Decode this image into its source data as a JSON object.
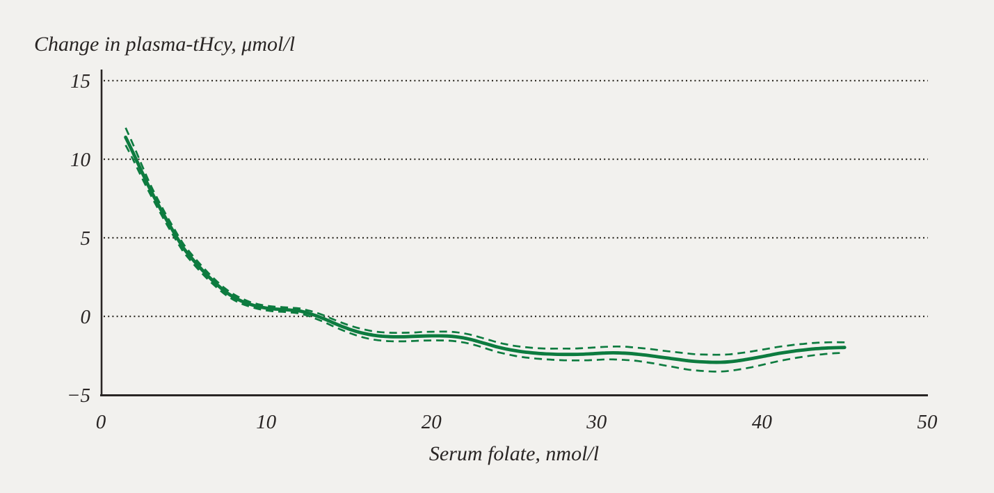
{
  "chart_data": {
    "type": "line",
    "title": "Change in plasma-tHcy, μmol/l",
    "xlabel": "Serum folate, nmol/l",
    "ylabel": "Change in plasma-tHcy, μmol/l",
    "xlim": [
      0,
      50
    ],
    "ylim": [
      -5,
      15
    ],
    "grid": "dotted-horizontal",
    "legend_position": "none",
    "x_ticks": [
      {
        "v": 0,
        "label": "0"
      },
      {
        "v": 10,
        "label": "10"
      },
      {
        "v": 20,
        "label": "20"
      },
      {
        "v": 30,
        "label": "30"
      },
      {
        "v": 40,
        "label": "40"
      },
      {
        "v": 50,
        "label": "50"
      }
    ],
    "y_ticks": [
      {
        "v": 15,
        "label": "15"
      },
      {
        "v": 10,
        "label": "10"
      },
      {
        "v": 5,
        "label": "5"
      },
      {
        "v": 0,
        "label": "0"
      },
      {
        "v": -5,
        "label": "−5"
      }
    ],
    "gridlines_y": [
      15,
      10,
      5,
      0
    ],
    "x": [
      1.5,
      2,
      2.5,
      3,
      3.5,
      4,
      4.5,
      5,
      5.5,
      6,
      6.5,
      7,
      7.5,
      8,
      8.5,
      9,
      9.5,
      10,
      10.5,
      11,
      11.5,
      12,
      12.5,
      13,
      13.5,
      14,
      14.5,
      15,
      15.5,
      16,
      16.5,
      17,
      17.5,
      18,
      18.5,
      19,
      19.5,
      20,
      20.5,
      21,
      21.5,
      22,
      22.5,
      23,
      23.5,
      24,
      24.5,
      25,
      25.5,
      26,
      26.5,
      27,
      27.5,
      28,
      28.5,
      29,
      29.5,
      30,
      30.5,
      31,
      31.5,
      32,
      32.5,
      33,
      33.5,
      34,
      34.5,
      35,
      35.5,
      36,
      36.5,
      37,
      37.5,
      38,
      38.5,
      39,
      39.5,
      40,
      40.5,
      41,
      41.5,
      42,
      42.5,
      43,
      43.5,
      44,
      44.5,
      45
    ],
    "series": [
      {
        "name": "smoothed-mean",
        "style": "solid",
        "values": [
          11.4,
          10.3,
          9.15,
          8.05,
          7.05,
          6.1,
          5.2,
          4.35,
          3.7,
          3.1,
          2.55,
          2.05,
          1.6,
          1.25,
          0.98,
          0.78,
          0.63,
          0.53,
          0.47,
          0.44,
          0.4,
          0.35,
          0.22,
          0.05,
          -0.15,
          -0.38,
          -0.6,
          -0.8,
          -0.97,
          -1.1,
          -1.2,
          -1.26,
          -1.29,
          -1.3,
          -1.29,
          -1.27,
          -1.25,
          -1.24,
          -1.24,
          -1.25,
          -1.3,
          -1.38,
          -1.5,
          -1.65,
          -1.8,
          -1.95,
          -2.07,
          -2.17,
          -2.25,
          -2.31,
          -2.36,
          -2.39,
          -2.41,
          -2.42,
          -2.42,
          -2.41,
          -2.39,
          -2.36,
          -2.33,
          -2.32,
          -2.33,
          -2.36,
          -2.41,
          -2.47,
          -2.54,
          -2.61,
          -2.68,
          -2.75,
          -2.82,
          -2.87,
          -2.9,
          -2.92,
          -2.92,
          -2.89,
          -2.83,
          -2.75,
          -2.66,
          -2.56,
          -2.46,
          -2.36,
          -2.28,
          -2.2,
          -2.14,
          -2.08,
          -2.04,
          -2.01,
          -1.99,
          -1.98
        ]
      },
      {
        "name": "ci-upper",
        "style": "dashed",
        "values": [
          12.0,
          10.82,
          9.58,
          8.38,
          7.34,
          6.37,
          5.46,
          4.6,
          3.94,
          3.33,
          2.77,
          2.25,
          1.79,
          1.43,
          1.15,
          0.93,
          0.78,
          0.68,
          0.62,
          0.59,
          0.55,
          0.51,
          0.39,
          0.25,
          0.06,
          -0.16,
          -0.37,
          -0.56,
          -0.72,
          -0.85,
          -0.95,
          -1.01,
          -1.04,
          -1.05,
          -1.04,
          -1.02,
          -0.99,
          -0.98,
          -0.97,
          -0.97,
          -1.01,
          -1.09,
          -1.2,
          -1.35,
          -1.5,
          -1.65,
          -1.77,
          -1.87,
          -1.94,
          -1.99,
          -2.03,
          -2.05,
          -2.05,
          -2.05,
          -2.05,
          -2.03,
          -2.0,
          -1.97,
          -1.94,
          -1.92,
          -1.92,
          -1.95,
          -2.0,
          -2.05,
          -2.11,
          -2.18,
          -2.24,
          -2.3,
          -2.36,
          -2.41,
          -2.43,
          -2.44,
          -2.44,
          -2.42,
          -2.36,
          -2.29,
          -2.21,
          -2.12,
          -2.03,
          -1.94,
          -1.87,
          -1.8,
          -1.75,
          -1.7,
          -1.67,
          -1.65,
          -1.64,
          -1.65
        ]
      },
      {
        "name": "ci-lower",
        "style": "dashed",
        "values": [
          10.9,
          9.87,
          8.78,
          7.75,
          6.77,
          5.83,
          4.94,
          4.1,
          3.46,
          2.87,
          2.33,
          1.85,
          1.41,
          1.07,
          0.81,
          0.63,
          0.48,
          0.38,
          0.32,
          0.29,
          0.25,
          0.19,
          0.05,
          -0.15,
          -0.36,
          -0.6,
          -0.83,
          -1.04,
          -1.22,
          -1.37,
          -1.48,
          -1.54,
          -1.58,
          -1.59,
          -1.58,
          -1.56,
          -1.54,
          -1.53,
          -1.53,
          -1.54,
          -1.59,
          -1.67,
          -1.79,
          -1.94,
          -2.11,
          -2.27,
          -2.39,
          -2.5,
          -2.59,
          -2.65,
          -2.7,
          -2.74,
          -2.77,
          -2.79,
          -2.8,
          -2.8,
          -2.79,
          -2.77,
          -2.74,
          -2.74,
          -2.76,
          -2.79,
          -2.84,
          -2.92,
          -3.0,
          -3.1,
          -3.19,
          -3.29,
          -3.38,
          -3.44,
          -3.48,
          -3.51,
          -3.51,
          -3.47,
          -3.4,
          -3.31,
          -3.21,
          -3.09,
          -2.97,
          -2.85,
          -2.75,
          -2.65,
          -2.57,
          -2.49,
          -2.43,
          -2.38,
          -2.34,
          -2.32
        ]
      }
    ],
    "colors": {
      "accent_green": "#0d7b3f",
      "background": "#f2f1ee",
      "text": "#292524",
      "axis": "#292524",
      "grid_dots": "#333029"
    }
  }
}
